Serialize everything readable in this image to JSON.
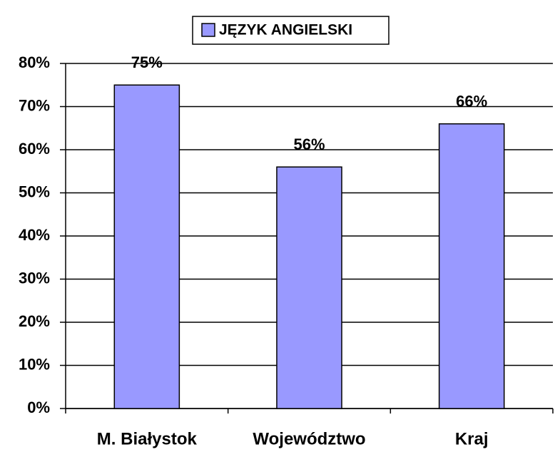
{
  "chart_data": {
    "type": "bar",
    "categories": [
      "M. Białystok",
      "Województwo",
      "Kraj"
    ],
    "series": [
      {
        "name": "JĘZYK ANGIELSKI",
        "color": "#9999ff",
        "values": [
          75,
          56,
          66
        ],
        "value_labels": [
          "75%",
          "56%",
          "66%"
        ]
      }
    ],
    "ylim": [
      0,
      80
    ],
    "yticks": [
      {
        "value": 0,
        "label": "0%"
      },
      {
        "value": 10,
        "label": "10%"
      },
      {
        "value": 20,
        "label": "20%"
      },
      {
        "value": 30,
        "label": "30%"
      },
      {
        "value": 40,
        "label": "40%"
      },
      {
        "value": 50,
        "label": "50%"
      },
      {
        "value": 60,
        "label": "60%"
      },
      {
        "value": 70,
        "label": "70%"
      },
      {
        "value": 80,
        "label": "80%"
      }
    ],
    "grid": true,
    "legend": "top"
  }
}
